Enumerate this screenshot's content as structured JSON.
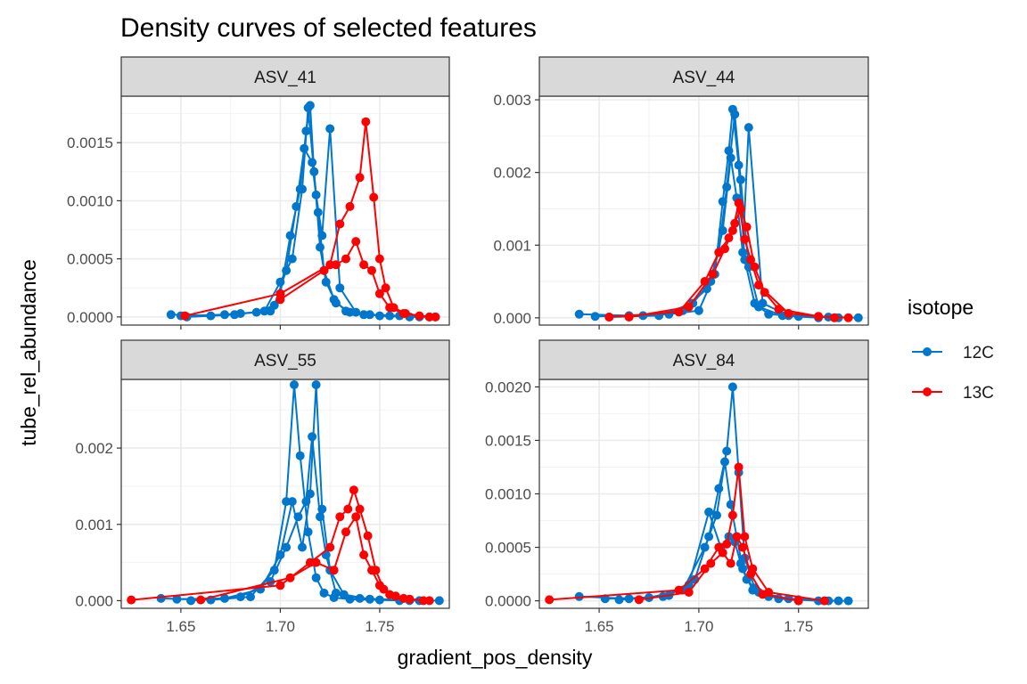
{
  "chart_data": {
    "type": "line",
    "title": "Density curves of selected features",
    "xlabel": "gradient_pos_density",
    "ylabel": "tube_rel_abundance",
    "legend": {
      "title": "isotope",
      "position": "right",
      "entries": [
        {
          "label": "12C",
          "color": "#0077CC"
        },
        {
          "label": "13C",
          "color": "#FF0000"
        }
      ]
    },
    "grid": true,
    "x_ticks": [
      "1.65",
      "1.70",
      "1.75"
    ],
    "x_tick_values": [
      1.65,
      1.7,
      1.75
    ],
    "panels": [
      {
        "label": "ASV_41",
        "xlim": [
          1.62,
          1.785
        ],
        "ylim": [
          -7e-05,
          0.0019
        ],
        "y_ticks": [
          0,
          0.0005,
          0.001,
          0.0015
        ],
        "y_tick_labels": [
          "0.0000",
          "0.0005",
          "0.0010",
          "0.0015"
        ],
        "series": [
          {
            "isotope": "12C",
            "x": [
              1.645,
              1.665,
              1.68,
              1.695,
              1.7,
              1.705,
              1.71,
              1.713,
              1.715,
              1.717,
              1.72,
              1.723,
              1.728,
              1.735,
              1.745,
              1.76,
              1.775
            ],
            "y": [
              2e-05,
              1e-05,
              3e-05,
              5e-05,
              0.0002,
              0.0007,
              0.0011,
              0.0016,
              0.00182,
              0.00125,
              0.0006,
              0.0003,
              0.00012,
              4e-05,
              2e-05,
              1e-05,
              0.0
            ]
          },
          {
            "isotope": "12C",
            "x": [
              1.65,
              1.672,
              1.688,
              1.697,
              1.703,
              1.708,
              1.712,
              1.716,
              1.719,
              1.722,
              1.727,
              1.733,
              1.742,
              1.755,
              1.77
            ],
            "y": [
              1e-05,
              2e-05,
              4e-05,
              0.0001,
              0.0004,
              0.00095,
              0.00145,
              0.00133,
              0.0009,
              0.0004,
              0.00015,
              5e-05,
              2e-05,
              1e-05,
              0.0
            ]
          },
          {
            "isotope": "12C",
            "x": [
              1.653,
              1.677,
              1.692,
              1.7,
              1.706,
              1.711,
              1.714,
              1.718,
              1.721,
              1.725,
              1.73,
              1.738,
              1.75,
              1.765,
              1.778
            ],
            "y": [
              0.0,
              2e-05,
              5e-05,
              0.0003,
              0.0005,
              0.0011,
              0.0018,
              0.00105,
              0.0007,
              0.00162,
              0.00025,
              4e-05,
              1e-05,
              0.0,
              0.0
            ]
          },
          {
            "isotope": "13C",
            "x": [
              1.652,
              1.7,
              1.725,
              1.73,
              1.735,
              1.74,
              1.743,
              1.747,
              1.75,
              1.753,
              1.757,
              1.763,
              1.77,
              1.778
            ],
            "y": [
              1e-05,
              0.0002,
              0.00045,
              0.0008,
              0.00095,
              0.0012,
              0.00168,
              0.00103,
              0.0005,
              0.00025,
              8e-05,
              3e-05,
              1e-05,
              0.0
            ]
          },
          {
            "isotope": "13C",
            "x": [
              1.7,
              1.722,
              1.728,
              1.733,
              1.738,
              1.742,
              1.746,
              1.75,
              1.755,
              1.762,
              1.775
            ],
            "y": [
              0.00015,
              0.0004,
              0.00045,
              0.0005,
              0.00065,
              0.00045,
              0.0004,
              0.0002,
              8e-05,
              3e-05,
              0.0
            ]
          }
        ]
      },
      {
        "label": "ASV_44",
        "xlim": [
          1.62,
          1.785
        ],
        "ylim": [
          -0.0001,
          0.00305
        ],
        "y_ticks": [
          0,
          0.001,
          0.002,
          0.003
        ],
        "y_tick_labels": [
          "0.000",
          "0.001",
          "0.002",
          "0.003"
        ],
        "series": [
          {
            "isotope": "12C",
            "x": [
              1.64,
              1.665,
              1.685,
              1.7,
              1.708,
              1.712,
              1.715,
              1.717,
              1.72,
              1.723,
              1.728,
              1.735,
              1.75,
              1.765,
              1.78
            ],
            "y": [
              5e-05,
              3e-05,
              5e-05,
              0.0001,
              0.0006,
              0.0016,
              0.0023,
              0.00287,
              0.0021,
              0.0008,
              0.0002,
              5e-05,
              2e-05,
              1e-05,
              0.0
            ]
          },
          {
            "isotope": "12C",
            "x": [
              1.648,
              1.672,
              1.692,
              1.704,
              1.71,
              1.714,
              1.718,
              1.721,
              1.725,
              1.73,
              1.742,
              1.76
            ],
            "y": [
              2e-05,
              3e-05,
              0.0001,
              0.0004,
              0.0009,
              0.0018,
              0.0028,
              0.0019,
              0.0007,
              0.00015,
              3e-05,
              0.0
            ]
          },
          {
            "isotope": "12C",
            "x": [
              1.655,
              1.68,
              1.697,
              1.706,
              1.712,
              1.716,
              1.719,
              1.722,
              1.725,
              1.732,
              1.745,
              1.77
            ],
            "y": [
              1e-05,
              3e-05,
              0.0002,
              0.0005,
              0.0012,
              0.0022,
              0.00165,
              0.0009,
              0.00262,
              0.0002,
              3e-05,
              0.0
            ]
          },
          {
            "isotope": "13C",
            "x": [
              1.655,
              1.69,
              1.703,
              1.71,
              1.715,
              1.718,
              1.721,
              1.724,
              1.728,
              1.733,
              1.74,
              1.76,
              1.775
            ],
            "y": [
              1e-05,
              8e-05,
              0.0005,
              0.0009,
              0.0011,
              0.0013,
              0.0015,
              0.00125,
              0.0007,
              0.00035,
              0.00012,
              2e-05,
              0.0
            ]
          },
          {
            "isotope": "13C",
            "x": [
              1.665,
              1.695,
              1.707,
              1.713,
              1.717,
              1.72,
              1.723,
              1.726,
              1.73,
              1.745,
              1.768
            ],
            "y": [
              1e-05,
              0.00015,
              0.0006,
              0.00095,
              0.0012,
              0.00158,
              0.00108,
              0.0008,
              0.00045,
              6e-05,
              0.0
            ]
          }
        ]
      },
      {
        "label": "ASV_55",
        "xlim": [
          1.62,
          1.785
        ],
        "ylim": [
          -0.0001,
          0.0029
        ],
        "y_ticks": [
          0,
          0.001,
          0.002
        ],
        "y_tick_labels": [
          "0.000",
          "0.001",
          "0.002"
        ],
        "series": [
          {
            "isotope": "12C",
            "x": [
              1.64,
              1.665,
              1.685,
              1.697,
              1.703,
              1.707,
              1.71,
              1.714,
              1.718,
              1.722,
              1.727,
              1.735,
              1.75,
              1.765,
              1.78
            ],
            "y": [
              3e-05,
              1e-05,
              5e-05,
              0.0004,
              0.0013,
              0.00283,
              0.0019,
              0.0009,
              0.0003,
              0.0001,
              4e-05,
              2e-05,
              1e-05,
              0.0,
              0.0
            ]
          },
          {
            "isotope": "12C",
            "x": [
              1.648,
              1.672,
              1.69,
              1.7,
              1.706,
              1.711,
              1.715,
              1.718,
              1.721,
              1.725,
              1.732,
              1.745,
              1.76
            ],
            "y": [
              2e-05,
              3e-05,
              0.00015,
              0.0006,
              0.0013,
              0.0007,
              0.0014,
              0.00283,
              0.0012,
              0.0004,
              8e-05,
              2e-05,
              0.0
            ]
          },
          {
            "isotope": "12C",
            "x": [
              1.655,
              1.68,
              1.695,
              1.703,
              1.709,
              1.713,
              1.716,
              1.72,
              1.723,
              1.728,
              1.74,
              1.77
            ],
            "y": [
              0.0,
              5e-05,
              0.00025,
              0.0007,
              0.0011,
              0.0013,
              0.00215,
              0.0011,
              0.0006,
              0.0001,
              3e-05,
              0.0
            ]
          },
          {
            "isotope": "13C",
            "x": [
              1.625,
              1.7,
              1.715,
              1.725,
              1.73,
              1.734,
              1.737,
              1.74,
              1.744,
              1.748,
              1.752,
              1.758,
              1.765,
              1.775
            ],
            "y": [
              1e-05,
              0.0002,
              0.0005,
              0.0007,
              0.0011,
              0.0012,
              0.00145,
              0.0012,
              0.00085,
              0.0004,
              0.00015,
              6e-05,
              2e-05,
              0.0
            ]
          },
          {
            "isotope": "13C",
            "x": [
              1.66,
              1.705,
              1.718,
              1.727,
              1.733,
              1.738,
              1.742,
              1.746,
              1.75,
              1.755,
              1.762,
              1.772
            ],
            "y": [
              1e-05,
              0.0003,
              0.0005,
              0.0004,
              0.0009,
              0.0011,
              0.0006,
              0.0004,
              0.0002,
              8e-05,
              3e-05,
              0.0
            ]
          }
        ]
      },
      {
        "label": "ASV_84",
        "xlim": [
          1.62,
          1.785
        ],
        "ylim": [
          -7e-05,
          0.00207
        ],
        "y_ticks": [
          0,
          0.0005,
          0.001,
          0.0015,
          0.002
        ],
        "y_tick_labels": [
          "0.0000",
          "0.0005",
          "0.0010",
          "0.0015",
          "0.0020"
        ],
        "series": [
          {
            "isotope": "12C",
            "x": [
              1.64,
              1.665,
              1.685,
              1.698,
              1.705,
              1.71,
              1.714,
              1.717,
              1.72,
              1.723,
              1.728,
              1.735,
              1.75,
              1.765,
              1.775
            ],
            "y": [
              4e-05,
              2e-05,
              5e-05,
              0.0002,
              0.0006,
              0.00105,
              0.0014,
              0.002,
              0.0012,
              0.0004,
              0.00012,
              4e-05,
              1e-05,
              0.0,
              0.0
            ]
          },
          {
            "isotope": "12C",
            "x": [
              1.653,
              1.675,
              1.692,
              1.703,
              1.709,
              1.713,
              1.716,
              1.719,
              1.722,
              1.727,
              1.74,
              1.76
            ],
            "y": [
              2e-05,
              3e-05,
              0.0001,
              0.0005,
              0.0008,
              0.0013,
              0.0009,
              0.0006,
              0.0003,
              0.0001,
              2e-05,
              0.0
            ]
          },
          {
            "isotope": "12C",
            "x": [
              1.66,
              1.682,
              1.695,
              1.705,
              1.711,
              1.715,
              1.718,
              1.721,
              1.724,
              1.73,
              1.745,
              1.77
            ],
            "y": [
              1e-05,
              4e-05,
              0.00015,
              0.00083,
              0.0005,
              0.0006,
              0.00055,
              0.00035,
              0.0002,
              8e-05,
              2e-05,
              0.0
            ]
          },
          {
            "isotope": "13C",
            "x": [
              1.625,
              1.69,
              1.703,
              1.71,
              1.714,
              1.717,
              1.72,
              1.723,
              1.727,
              1.735,
              1.763
            ],
            "y": [
              1e-05,
              0.0001,
              0.0003,
              0.0005,
              0.00053,
              0.0008,
              0.00125,
              0.0006,
              0.0003,
              8e-05,
              0.0
            ]
          },
          {
            "isotope": "13C",
            "x": [
              1.67,
              1.695,
              1.706,
              1.712,
              1.716,
              1.719,
              1.722,
              1.726,
              1.732,
              1.75
            ],
            "y": [
              1e-05,
              8e-05,
              0.00035,
              0.00045,
              0.00035,
              0.0006,
              0.0005,
              0.00025,
              6e-05,
              0.0
            ]
          }
        ]
      }
    ]
  }
}
